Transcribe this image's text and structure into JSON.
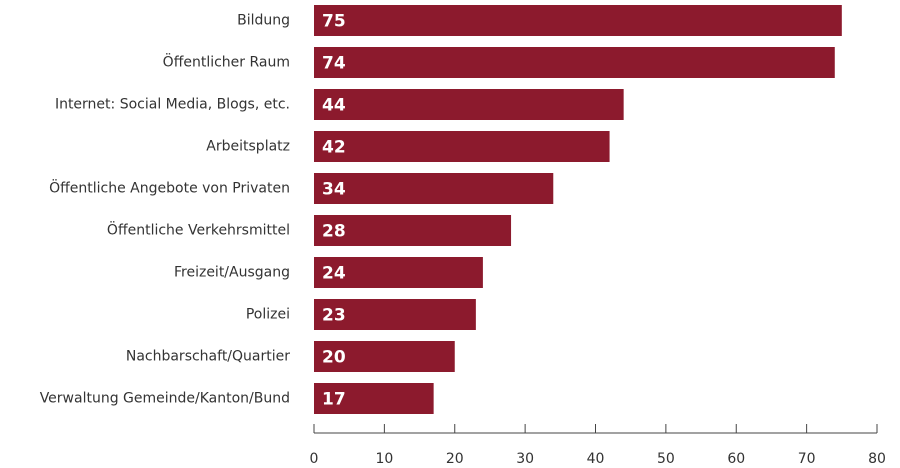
{
  "chart_data": {
    "type": "bar",
    "orientation": "horizontal",
    "categories": [
      "Bildung",
      "Öffentlicher Raum",
      "Internet: Social Media, Blogs, etc.",
      "Arbeitsplatz",
      "Öffentliche Angebote von Privaten",
      "Öffentliche Verkehrsmittel",
      "Freizeit/Ausgang",
      "Polizei",
      "Nachbarschaft/Quartier",
      "Verwaltung Gemeinde/Kanton/Bund"
    ],
    "values": [
      75,
      74,
      44,
      42,
      34,
      28,
      24,
      23,
      20,
      17
    ],
    "data_labels": [
      "75",
      "74",
      "44",
      "42",
      "34",
      "28",
      "24",
      "23",
      "20",
      "17"
    ],
    "xlim": [
      0,
      80
    ],
    "x_ticks": [
      0,
      10,
      20,
      30,
      40,
      50,
      60,
      70,
      80
    ],
    "x_tick_labels": [
      "0",
      "10",
      "20",
      "30",
      "40",
      "50",
      "60",
      "70",
      "80"
    ],
    "title": "",
    "xlabel": "",
    "ylabel": "",
    "grid": false,
    "legend": "none",
    "bar_color": "#8c1a2d"
  }
}
